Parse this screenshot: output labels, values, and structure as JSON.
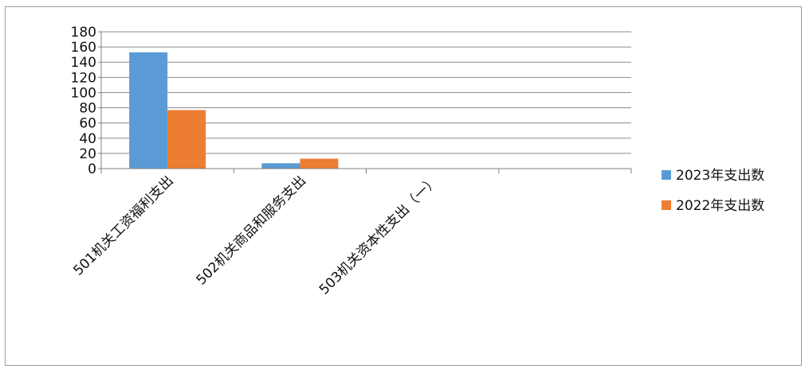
{
  "chart_data": {
    "type": "bar",
    "categories": [
      "501机关工资福利支出",
      "502机关商品和服务支出",
      "503机关资本性支出（一）",
      ""
    ],
    "series": [
      {
        "name": "2023年支出数",
        "values": [
          153,
          7,
          0,
          0
        ],
        "color": "#5b9bd5"
      },
      {
        "name": "2022年支出数",
        "values": [
          77,
          13,
          0,
          0
        ],
        "color": "#ed7d31"
      }
    ],
    "ylim": [
      0,
      180
    ],
    "yticks": [
      0,
      20,
      40,
      60,
      80,
      100,
      120,
      140,
      160,
      180
    ],
    "grid": true,
    "legend": "right"
  }
}
